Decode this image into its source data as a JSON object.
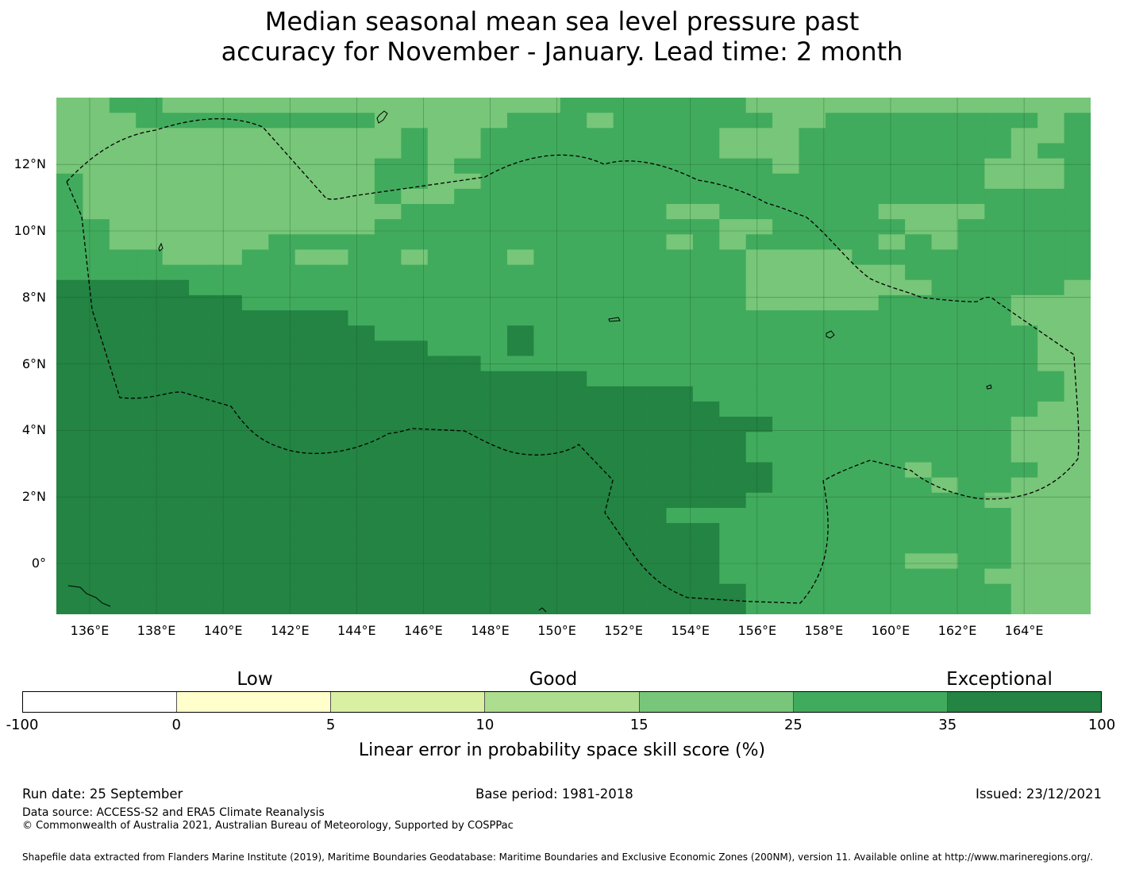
{
  "title_line1": "Median seasonal mean sea level pressure past",
  "title_line2": "accuracy for November - January. Lead time: 2 month",
  "map": {
    "lon_labels": [
      "136°E",
      "138°E",
      "140°E",
      "142°E",
      "144°E",
      "146°E",
      "148°E",
      "150°E",
      "152°E",
      "154°E",
      "156°E",
      "158°E",
      "160°E",
      "162°E",
      "164°E"
    ],
    "lat_labels": [
      "12°N",
      "10°N",
      "8°N",
      "6°N",
      "4°N",
      "2°N",
      "0°"
    ],
    "cell_colors": [
      "#ffffcc",
      "#d9f0a3",
      "#addd8e",
      "#78c679",
      "#41ab5d",
      "#238443"
    ],
    "cell_grid": [
      "334433333333333333344444443333333333333",
      "333444444444333334443444444334444444434",
      "333333333333343344444444433344444444334",
      "333333333333343344444444433344444444344",
      "333333333333443444444444444344444443334",
      "433333333333443344444444444444444443334",
      "433333333333433444444444444444444444444",
      "433333333333344444444443344444433334444",
      "443333333333444444444444433444443344444",
      "443333334444444444444443434444434344444",
      "444433344334434443444444443333444444444",
      "444444444444444444444444443333334444444",
      "555554444444444444444444443333333444443",
      "555555544444444444444444443333344444333",
      "555555555554444444444444444444444444333",
      "555555555555444445444444444444444444433",
      "555555555555554445444444444444444444433",
      "555555555555555544444444444444444444433",
      "555555555555555555554444444444444444443",
      "555555555555555555555555444444444444443",
      "555555555555555555555555544444444444433",
      "555555555555555555555555555444444444333",
      "555555555555555555555555554444444444333",
      "555555555555555555555555554444444444333",
      "555555555555555555555555555444443444433",
      "555555555555555555555555555444444344333",
      "555555555555555555555555554444444443333",
      "555555555555555555555554444444444444333",
      "555555555555555555555555544444444444333",
      "555555555555555555555555544444444444333",
      "555555555555555555555555544444443344333",
      "555555555555555555555555544444444443333",
      "555555555555555555555555554444444444333",
      "555555555555555555555555554444444444333"
    ]
  },
  "colorbar": {
    "group_labels": [
      "Low",
      "Good",
      "Exceptional"
    ],
    "ticks": [
      "-100",
      "0",
      "5",
      "10",
      "15",
      "25",
      "35",
      "100"
    ],
    "colors": [
      "#ffffff",
      "#ffffcc",
      "#d9f0a3",
      "#addd8e",
      "#78c679",
      "#41ab5d",
      "#238443"
    ],
    "title": "Linear error in probability space skill score (%)"
  },
  "footer": {
    "run_date": "Run date: 25 September",
    "base_period": "Base period: 1981-2018",
    "issued": "Issued: 23/12/2021",
    "data_source": "Data source: ACCESS-S2 and ERA5 Climate Reanalysis",
    "copyright": "© Commonwealth of Australia 2021, Australian Bureau of Meteorology, Supported by COSPPac",
    "shapefile": "Shapefile data extracted from Flanders Marine Institute (2019), Maritime Boundaries Geodatabase: Maritime Boundaries and Exclusive Economic Zones (200NM), version 11. Available online at http://www.marineregions.org/."
  }
}
